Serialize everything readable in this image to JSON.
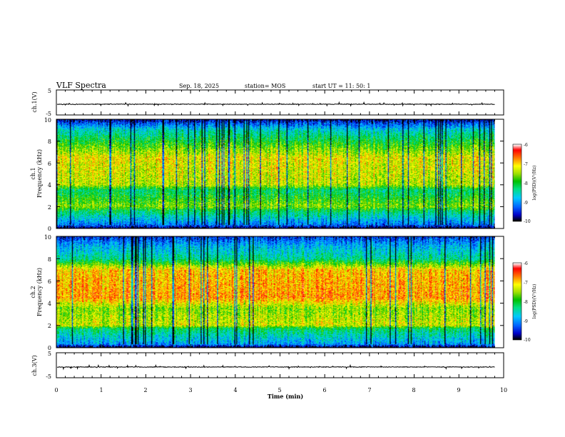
{
  "chart_data": [
    {
      "type": "line",
      "panel": "ch1-waveform",
      "ylabel": "ch.1(V)",
      "ylim": [
        -5,
        5
      ],
      "yticks": [
        5,
        -5
      ],
      "x_range_min": [
        0,
        10
      ],
      "baseline_value": -0.7,
      "description_of_trace": "near-constant baseline with small spiky fluctuations"
    },
    {
      "type": "heatmap",
      "panel": "ch1-spectrogram",
      "ylabel": "ch.1 Frequency (kHz)",
      "ylim": [
        0,
        10
      ],
      "yticks": [
        0,
        2,
        4,
        6,
        8,
        10
      ],
      "x_range_min": [
        0,
        10
      ],
      "data_end_min": 9.8,
      "color_scale": {
        "label": "log(PSD)(V²/Hz)",
        "range": [
          -10,
          -6
        ],
        "ticks": [
          -6,
          -7,
          -8,
          -9,
          -10
        ]
      },
      "bands_kHz_logPSD": [
        [
          0.0,
          -10
        ],
        [
          0.3,
          -9.2
        ],
        [
          1.6,
          -8.2
        ],
        [
          2.0,
          -7.6
        ],
        [
          3.5,
          -8.3
        ],
        [
          4.0,
          -7.4
        ],
        [
          6.5,
          -7.2
        ],
        [
          9.0,
          -8.6
        ],
        [
          9.7,
          -9.4
        ],
        [
          10.0,
          -9.8
        ]
      ]
    },
    {
      "type": "heatmap",
      "panel": "ch2-spectrogram",
      "ylabel": "ch.2 Frequency (kHz)",
      "ylim": [
        0,
        10
      ],
      "yticks": [
        0,
        2,
        4,
        6,
        8,
        10
      ],
      "x_range_min": [
        0,
        10
      ],
      "data_end_min": 9.8,
      "color_scale": {
        "label": "log(PSD)(V²/Hz)",
        "range": [
          -10,
          -6
        ],
        "ticks": [
          -6,
          -7,
          -8,
          -9,
          -10
        ]
      },
      "bands_kHz_logPSD": [
        [
          0.0,
          -10
        ],
        [
          0.3,
          -9.0
        ],
        [
          1.7,
          -8.2
        ],
        [
          2.0,
          -7.3
        ],
        [
          3.5,
          -7.6
        ],
        [
          4.5,
          -6.8
        ],
        [
          7.0,
          -7.0
        ],
        [
          8.0,
          -8.4
        ],
        [
          9.2,
          -8.9
        ],
        [
          10.0,
          -9.5
        ]
      ]
    },
    {
      "type": "line",
      "panel": "ch3-waveform",
      "ylabel": "ch.3(V)",
      "ylim": [
        -5,
        5
      ],
      "yticks": [
        5,
        -5
      ],
      "x_range_min": [
        0,
        10
      ],
      "baseline_value": -0.7,
      "description_of_trace": "near-constant baseline with small spiky fluctuations"
    }
  ],
  "header": {
    "title": "VLF Spectra",
    "date": "Sep. 18, 2025",
    "station": "station= MOS",
    "start": "start  UT  =   11: 50: 1"
  },
  "xaxis": {
    "label": "Time  (min)",
    "ticks": [
      "0",
      "1",
      "2",
      "3",
      "4",
      "5",
      "6",
      "7",
      "8",
      "9",
      "10"
    ]
  },
  "labels": {
    "ch1_wave": "ch.1(V)",
    "ch1_spec_line1": "ch.1",
    "ch1_spec_line2": "Frequency (kHz)",
    "ch2_spec_line1": "ch.2",
    "ch2_spec_line2": "Frequency (kHz)",
    "ch3_wave": "ch.3(V)",
    "colorbar": "log(PSD)(V²/Hz)"
  },
  "wave_ticks": [
    "5",
    "-5"
  ],
  "freq_ticks": [
    "0",
    "2",
    "4",
    "6",
    "8",
    "10"
  ],
  "colorbar_ticks": [
    "-6",
    "-7",
    "-8",
    "-9",
    "-10"
  ],
  "colors": {
    "colormap": [
      "#000000",
      "#0000c8",
      "#0060ff",
      "#00c8ff",
      "#00e080",
      "#00c000",
      "#a0e000",
      "#ffff00",
      "#ff8000",
      "#ff0000",
      "#ffffff"
    ]
  }
}
